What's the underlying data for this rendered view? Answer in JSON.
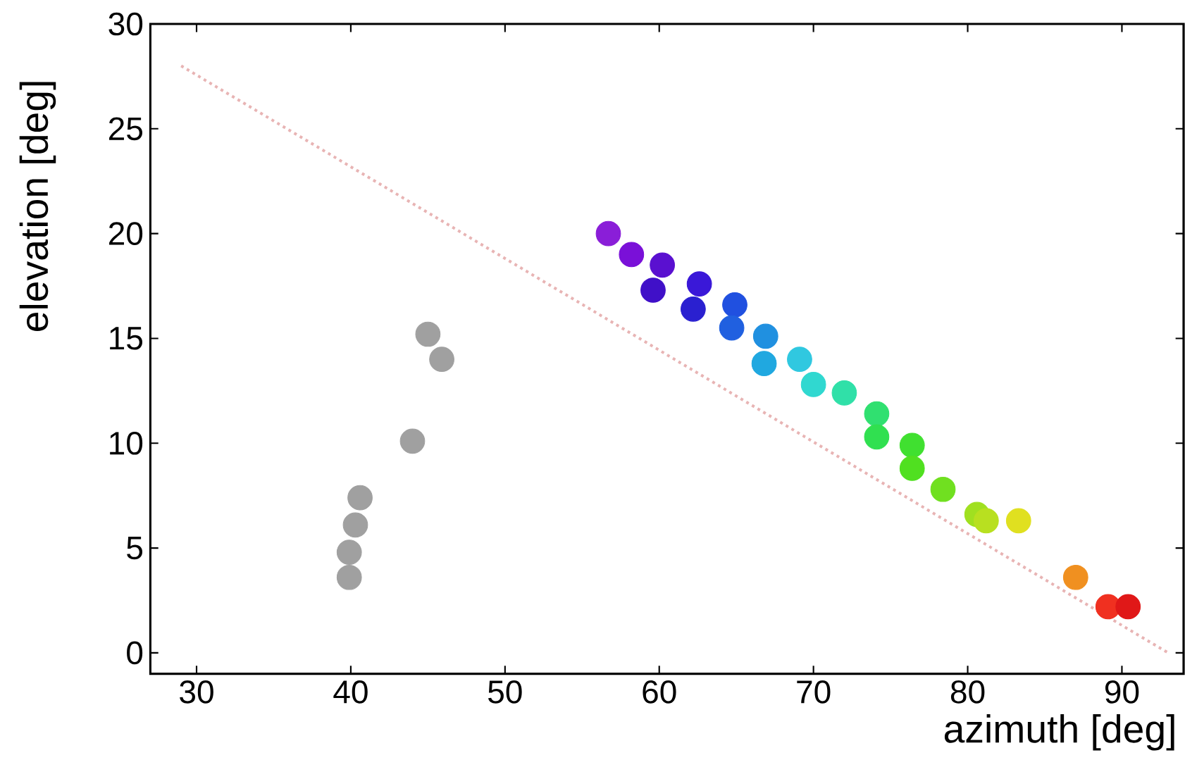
{
  "chart_data": {
    "type": "scatter",
    "xlabel": "azimuth  [deg]",
    "ylabel": "elevation  [deg]",
    "xlim": [
      27,
      94
    ],
    "ylim": [
      -1,
      30
    ],
    "xticks": [
      30,
      40,
      50,
      60,
      70,
      80,
      90
    ],
    "yticks": [
      0,
      5,
      10,
      15,
      20,
      25,
      30
    ],
    "grid": false,
    "marker": "circle",
    "series": [
      {
        "type": "line",
        "color": "#e8b4b4",
        "line_style": "dotted",
        "marker": "none",
        "x": [
          29,
          93
        ],
        "values": [
          28,
          0
        ]
      },
      {
        "color": "#a0a0a0",
        "x": [
          45.0,
          45.9,
          44.0,
          40.6,
          40.3,
          39.9,
          39.9
        ],
        "values": [
          15.2,
          14.0,
          10.1,
          7.4,
          6.1,
          4.8,
          3.6
        ]
      },
      {
        "type": "scatter",
        "x": [
          56.7,
          58.2,
          60.2,
          59.6,
          62.6,
          62.2,
          64.9,
          64.7,
          66.9,
          66.8,
          69.1,
          70.0,
          72.0,
          74.1,
          74.1,
          76.4,
          76.4,
          78.4,
          80.6,
          81.2,
          83.3,
          87.0,
          89.1,
          90.4
        ],
        "values": [
          20.0,
          19.0,
          18.5,
          17.3,
          17.6,
          16.4,
          16.6,
          15.5,
          15.1,
          13.8,
          14.0,
          12.8,
          12.4,
          11.4,
          10.3,
          9.9,
          8.8,
          7.8,
          6.6,
          6.3,
          6.3,
          3.6,
          2.2,
          2.2
        ],
        "colors": [
          "#8a1ed8",
          "#7a10d8",
          "#5a10d0",
          "#4010c8",
          "#3a18d8",
          "#2a20d0",
          "#2050e0",
          "#2060e0",
          "#2090e0",
          "#20a8e0",
          "#30c8e0",
          "#30d8d0",
          "#30e0a8",
          "#30e070",
          "#30e050",
          "#40e030",
          "#50e020",
          "#70e020",
          "#a0e020",
          "#b8e020",
          "#e0e020",
          "#f09020",
          "#f03020",
          "#e01818"
        ]
      }
    ]
  }
}
